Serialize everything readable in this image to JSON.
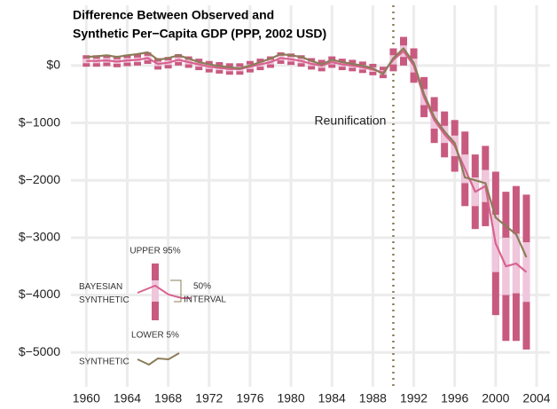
{
  "chart_data": {
    "type": "line",
    "title": [
      "Difference Between Observed and",
      "Synthetic Per−Capita GDP (PPP, 2002 USD)"
    ],
    "x": [
      1960,
      1961,
      1962,
      1963,
      1964,
      1965,
      1966,
      1967,
      1968,
      1969,
      1970,
      1971,
      1972,
      1973,
      1974,
      1975,
      1976,
      1977,
      1978,
      1979,
      1980,
      1981,
      1982,
      1983,
      1984,
      1985,
      1986,
      1987,
      1988,
      1989,
      1990,
      1991,
      1992,
      1993,
      1994,
      1995,
      1996,
      1997,
      1998,
      1999,
      2000,
      2001,
      2002,
      2003
    ],
    "series": [
      {
        "name": "BAYESIAN SYNTHETIC",
        "color": "#d8628f",
        "band_color_95": "#c85a80",
        "band_color_50": "#efc6dc",
        "values": [
          80,
          80,
          90,
          70,
          90,
          100,
          130,
          30,
          50,
          100,
          60,
          20,
          -20,
          -40,
          -60,
          -60,
          -20,
          20,
          60,
          130,
          110,
          80,
          30,
          0,
          60,
          20,
          0,
          -30,
          -70,
          -120,
          100,
          250,
          0,
          -550,
          -950,
          -1200,
          -1400,
          -1800,
          -2200,
          -2100,
          -3100,
          -3500,
          -3450,
          -3600
        ],
        "error_95": [
          100,
          100,
          100,
          100,
          100,
          100,
          100,
          100,
          100,
          100,
          100,
          100,
          100,
          100,
          100,
          100,
          100,
          100,
          100,
          100,
          100,
          100,
          100,
          100,
          100,
          100,
          100,
          100,
          100,
          100,
          200,
          250,
          300,
          350,
          400,
          400,
          450,
          650,
          650,
          700,
          1250,
          1300,
          1350,
          1350
        ],
        "error_50": [
          40,
          40,
          40,
          40,
          40,
          40,
          40,
          40,
          40,
          40,
          40,
          40,
          40,
          40,
          40,
          40,
          40,
          40,
          40,
          40,
          40,
          40,
          40,
          40,
          40,
          40,
          40,
          40,
          40,
          40,
          80,
          100,
          120,
          140,
          150,
          150,
          180,
          250,
          250,
          280,
          500,
          500,
          520,
          520
        ]
      },
      {
        "name": "SYNTHETIC",
        "color": "#8b7c58",
        "values": [
          150,
          160,
          180,
          150,
          180,
          200,
          230,
          100,
          130,
          180,
          120,
          60,
          20,
          -10,
          -30,
          -50,
          0,
          60,
          120,
          200,
          180,
          150,
          80,
          20,
          100,
          60,
          30,
          0,
          -50,
          -150,
          130,
          300,
          50,
          -500,
          -900,
          -1150,
          -1350,
          -1950,
          -2000,
          -2050,
          -2650,
          -2800,
          -2940,
          -3340
        ]
      }
    ],
    "legend": {
      "upper": "UPPER 95%",
      "lower": "LOWER 5%",
      "interval": [
        "50%",
        "INTERVAL"
      ]
    },
    "annotation": {
      "text": "Reunification",
      "x": 1990
    },
    "xlim": [
      1958.5,
      2005.3
    ],
    "xticks": [
      1960,
      1964,
      1968,
      1972,
      1976,
      1980,
      1984,
      1988,
      1992,
      1996,
      2000,
      2004
    ],
    "ylim": [
      -5600,
      1050
    ],
    "yticks": [
      {
        "value": 0,
        "label": "$0"
      },
      {
        "value": -1000,
        "label": "$−1000"
      },
      {
        "value": -2000,
        "label": "$−2000"
      },
      {
        "value": -3000,
        "label": "$−3000"
      },
      {
        "value": -4000,
        "label": "$−4000"
      },
      {
        "value": -5000,
        "label": "$−5000"
      }
    ],
    "grid": true
  }
}
